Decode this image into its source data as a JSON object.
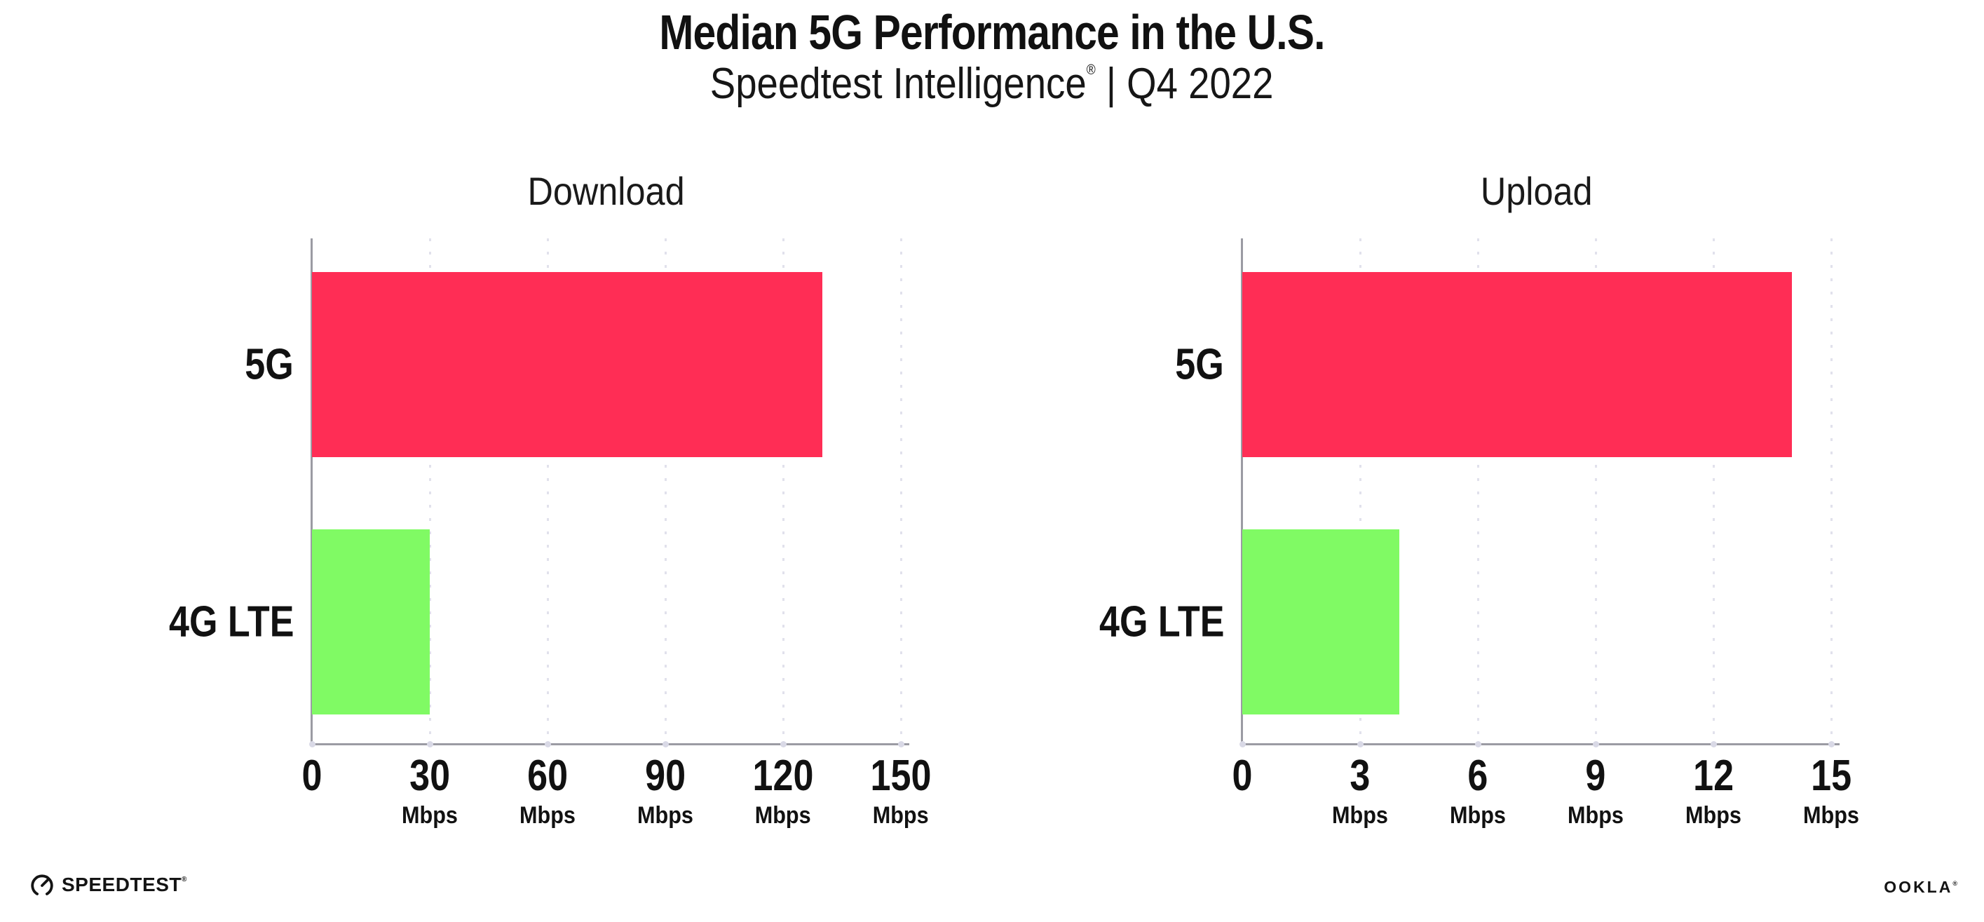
{
  "header": {
    "title": "Median 5G Performance in the U.S.",
    "subtitle_brand": "Speedtest Intelligence",
    "subtitle_reg": "®",
    "subtitle_rest": " | Q4 2022"
  },
  "chart_data": [
    {
      "type": "bar",
      "orientation": "horizontal",
      "title": "Download",
      "categories": [
        "5G",
        "4G LTE"
      ],
      "values": [
        130,
        30
      ],
      "unit": "Mbps",
      "xlim": [
        0,
        150
      ],
      "xticks": [
        0,
        30,
        60,
        90,
        120,
        150
      ],
      "bar_colors": [
        "#FF2D55",
        "#80FA64"
      ],
      "grid": "dotted-vertical",
      "legend": "none"
    },
    {
      "type": "bar",
      "orientation": "horizontal",
      "title": "Upload",
      "categories": [
        "5G",
        "4G LTE"
      ],
      "values": [
        14,
        4
      ],
      "unit": "Mbps",
      "xlim": [
        0,
        15
      ],
      "xticks": [
        0,
        3,
        6,
        9,
        12,
        15
      ],
      "bar_colors": [
        "#FF2D55",
        "#80FA64"
      ],
      "grid": "dotted-vertical",
      "legend": "none"
    }
  ],
  "footer": {
    "speedtest_label": "SPEEDTEST",
    "speedtest_reg": "®",
    "ookla_label": "OOKLA",
    "ookla_reg": "®"
  },
  "colors": {
    "background": "#ffffff",
    "bar_5g": "#FF2D55",
    "bar_4g_lte": "#80FA64",
    "gridline": "#e1e1ec",
    "axis": "#9b9ba3",
    "tick_dot": "#d9d9e6",
    "text": "#111111"
  }
}
